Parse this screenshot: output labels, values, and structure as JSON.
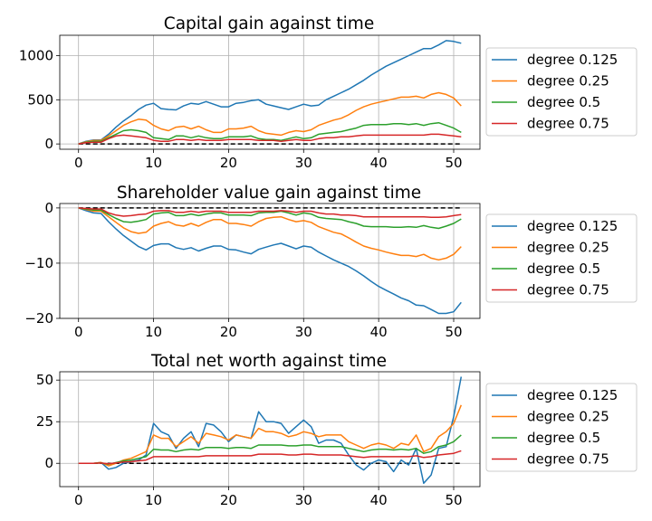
{
  "chart_data": [
    {
      "type": "line",
      "title": "Capital gain against time",
      "xlabel": "",
      "ylabel": "",
      "xlim": [
        -2.5,
        53.5
      ],
      "ylim": [
        -60,
        1230
      ],
      "xticks": [
        0,
        10,
        20,
        30,
        40,
        50
      ],
      "yticks": [
        0,
        500,
        1000
      ],
      "grid": true,
      "legend_position": "outside-right",
      "baseline": 0,
      "x": [
        0,
        1,
        2,
        3,
        4,
        5,
        6,
        7,
        8,
        9,
        10,
        11,
        12,
        13,
        14,
        15,
        16,
        17,
        18,
        19,
        20,
        21,
        22,
        23,
        24,
        25,
        26,
        27,
        28,
        29,
        30,
        31,
        32,
        33,
        34,
        35,
        36,
        37,
        38,
        39,
        40,
        41,
        42,
        43,
        44,
        45,
        46,
        47,
        48,
        49,
        50,
        51
      ],
      "series": [
        {
          "name": "degree 0.125",
          "color": "#1f77b4",
          "values": [
            0,
            30,
            45,
            45,
            110,
            190,
            260,
            320,
            390,
            440,
            460,
            400,
            390,
            385,
            430,
            460,
            450,
            480,
            450,
            420,
            420,
            460,
            470,
            490,
            500,
            450,
            430,
            410,
            390,
            420,
            450,
            430,
            440,
            500,
            540,
            580,
            620,
            670,
            720,
            780,
            830,
            880,
            920,
            960,
            1000,
            1040,
            1080,
            1080,
            1120,
            1170,
            1160,
            1140
          ]
        },
        {
          "name": "degree 0.25",
          "color": "#ff7f0e",
          "values": [
            0,
            25,
            40,
            40,
            90,
            150,
            210,
            250,
            280,
            270,
            210,
            170,
            150,
            190,
            200,
            170,
            200,
            160,
            130,
            130,
            170,
            170,
            180,
            200,
            150,
            120,
            110,
            100,
            130,
            150,
            140,
            160,
            210,
            240,
            270,
            290,
            330,
            380,
            420,
            450,
            470,
            490,
            510,
            530,
            530,
            540,
            520,
            560,
            580,
            560,
            520,
            430
          ]
        },
        {
          "name": "degree 0.5",
          "color": "#2ca02c",
          "values": [
            0,
            20,
            30,
            30,
            70,
            110,
            150,
            160,
            150,
            130,
            70,
            60,
            50,
            90,
            90,
            70,
            90,
            70,
            60,
            60,
            80,
            80,
            80,
            90,
            60,
            50,
            50,
            40,
            60,
            80,
            60,
            70,
            110,
            120,
            130,
            140,
            160,
            180,
            210,
            220,
            220,
            220,
            230,
            230,
            220,
            230,
            210,
            230,
            240,
            210,
            180,
            130
          ]
        },
        {
          "name": "degree 0.75",
          "color": "#d62728",
          "values": [
            0,
            15,
            20,
            20,
            60,
            90,
            100,
            90,
            80,
            70,
            40,
            30,
            30,
            50,
            50,
            40,
            50,
            40,
            40,
            40,
            50,
            50,
            50,
            50,
            40,
            40,
            40,
            30,
            40,
            50,
            40,
            40,
            60,
            70,
            70,
            80,
            80,
            90,
            100,
            100,
            100,
            100,
            100,
            100,
            100,
            100,
            100,
            110,
            110,
            100,
            90,
            80
          ]
        }
      ]
    },
    {
      "type": "line",
      "title": "Shareholder value gain against time",
      "xlabel": "",
      "ylabel": "",
      "xlim": [
        -2.5,
        53.5
      ],
      "ylim": [
        -20.0,
        0.8
      ],
      "xticks": [
        0,
        10,
        20,
        30,
        40,
        50
      ],
      "yticks": [
        -20,
        -10,
        0
      ],
      "grid": true,
      "legend_position": "outside-right",
      "baseline": 0,
      "x": [
        0,
        1,
        2,
        3,
        4,
        5,
        6,
        7,
        8,
        9,
        10,
        11,
        12,
        13,
        14,
        15,
        16,
        17,
        18,
        19,
        20,
        21,
        22,
        23,
        24,
        25,
        26,
        27,
        28,
        29,
        30,
        31,
        32,
        33,
        34,
        35,
        36,
        37,
        38,
        39,
        40,
        41,
        42,
        43,
        44,
        45,
        46,
        47,
        48,
        49,
        50,
        51
      ],
      "series": [
        {
          "name": "degree 0.125",
          "color": "#1f77b4",
          "values": [
            0,
            -0.5,
            -0.9,
            -1.0,
            -2.5,
            -3.8,
            -5.0,
            -6.0,
            -7.0,
            -7.6,
            -6.8,
            -6.5,
            -6.5,
            -7.2,
            -7.5,
            -7.2,
            -7.8,
            -7.3,
            -6.9,
            -6.9,
            -7.5,
            -7.6,
            -8.0,
            -8.3,
            -7.5,
            -7.1,
            -6.7,
            -6.4,
            -6.9,
            -7.4,
            -6.9,
            -7.1,
            -8.0,
            -8.7,
            -9.4,
            -10.0,
            -10.6,
            -11.4,
            -12.3,
            -13.3,
            -14.2,
            -14.9,
            -15.6,
            -16.3,
            -16.8,
            -17.6,
            -17.7,
            -18.4,
            -19.1,
            -19.1,
            -18.8,
            -17.1
          ]
        },
        {
          "name": "degree 0.25",
          "color": "#ff7f0e",
          "values": [
            0,
            -0.3,
            -0.6,
            -0.6,
            -1.6,
            -2.6,
            -3.6,
            -4.3,
            -4.6,
            -4.4,
            -3.3,
            -2.8,
            -2.5,
            -3.1,
            -3.3,
            -2.8,
            -3.3,
            -2.6,
            -2.1,
            -2.1,
            -2.8,
            -2.8,
            -3.0,
            -3.3,
            -2.5,
            -1.9,
            -1.7,
            -1.6,
            -2.1,
            -2.5,
            -2.3,
            -2.6,
            -3.4,
            -3.9,
            -4.4,
            -4.7,
            -5.4,
            -6.2,
            -6.9,
            -7.3,
            -7.6,
            -8.0,
            -8.3,
            -8.6,
            -8.6,
            -8.8,
            -8.4,
            -9.1,
            -9.4,
            -9.1,
            -8.4,
            -7.0
          ]
        },
        {
          "name": "degree 0.5",
          "color": "#2ca02c",
          "values": [
            0,
            -0.2,
            -0.4,
            -0.4,
            -1.2,
            -1.9,
            -2.5,
            -2.6,
            -2.4,
            -2.1,
            -1.1,
            -0.9,
            -0.8,
            -1.4,
            -1.4,
            -1.1,
            -1.4,
            -1.1,
            -0.9,
            -0.9,
            -1.3,
            -1.3,
            -1.3,
            -1.4,
            -0.9,
            -0.8,
            -0.8,
            -0.6,
            -0.9,
            -1.3,
            -0.9,
            -1.1,
            -1.7,
            -1.9,
            -2.0,
            -2.1,
            -2.5,
            -2.8,
            -3.3,
            -3.4,
            -3.4,
            -3.4,
            -3.5,
            -3.5,
            -3.4,
            -3.5,
            -3.2,
            -3.5,
            -3.7,
            -3.3,
            -2.8,
            -2.0
          ]
        },
        {
          "name": "degree 0.75",
          "color": "#d62728",
          "values": [
            0,
            -0.1,
            -0.2,
            -0.2,
            -0.9,
            -1.3,
            -1.5,
            -1.4,
            -1.2,
            -1.1,
            -0.6,
            -0.5,
            -0.5,
            -0.8,
            -0.8,
            -0.6,
            -0.8,
            -0.6,
            -0.6,
            -0.6,
            -0.8,
            -0.8,
            -0.8,
            -0.8,
            -0.6,
            -0.6,
            -0.6,
            -0.5,
            -0.6,
            -0.8,
            -0.6,
            -0.6,
            -0.9,
            -1.1,
            -1.1,
            -1.3,
            -1.3,
            -1.4,
            -1.6,
            -1.6,
            -1.6,
            -1.6,
            -1.6,
            -1.6,
            -1.6,
            -1.6,
            -1.6,
            -1.7,
            -1.7,
            -1.6,
            -1.4,
            -1.2
          ]
        }
      ]
    },
    {
      "type": "line",
      "title": "Total net worth against time",
      "xlabel": "",
      "ylabel": "",
      "xlim": [
        -2.5,
        53.5
      ],
      "ylim": [
        -14,
        55
      ],
      "xticks": [
        0,
        10,
        20,
        30,
        40,
        50
      ],
      "yticks": [
        0,
        25,
        50
      ],
      "grid": true,
      "legend_position": "outside-right",
      "baseline": 0,
      "x": [
        0,
        1,
        2,
        3,
        4,
        5,
        6,
        7,
        8,
        9,
        10,
        11,
        12,
        13,
        14,
        15,
        16,
        17,
        18,
        19,
        20,
        21,
        22,
        23,
        24,
        25,
        26,
        27,
        28,
        29,
        30,
        31,
        32,
        33,
        34,
        35,
        36,
        37,
        38,
        39,
        40,
        41,
        42,
        43,
        44,
        45,
        46,
        47,
        48,
        49,
        50,
        51
      ],
      "series": [
        {
          "name": "degree 0.125",
          "color": "#1f77b4",
          "values": [
            0,
            0,
            0,
            0.5,
            -3.5,
            -2.5,
            0,
            1,
            2,
            5,
            24,
            19,
            17,
            9,
            15,
            19,
            10,
            24,
            23,
            19,
            13,
            17,
            16,
            15,
            31,
            25,
            25,
            24,
            18,
            22,
            26,
            22,
            12,
            14,
            14,
            12,
            5,
            -1,
            -4,
            0,
            2,
            1,
            -5,
            2,
            -1,
            9,
            -12,
            -7,
            9,
            10,
            28,
            52
          ]
        },
        {
          "name": "degree 0.25",
          "color": "#ff7f0e",
          "values": [
            0,
            0,
            0,
            0.5,
            -1.5,
            0,
            2,
            3,
            5,
            7,
            17,
            15,
            15,
            10,
            13,
            16,
            12,
            18,
            17,
            16,
            14,
            17,
            16,
            15,
            21,
            19,
            19,
            18,
            16,
            17,
            19,
            18,
            16,
            17,
            17,
            17,
            13,
            11,
            9,
            11,
            12,
            11,
            9,
            12,
            11,
            17,
            7,
            9,
            16,
            19,
            24,
            35
          ]
        },
        {
          "name": "degree 0.5",
          "color": "#2ca02c",
          "values": [
            0,
            0,
            0,
            0.3,
            -0.5,
            0.5,
            1.5,
            2,
            3,
            4,
            8.5,
            8,
            8,
            7,
            8,
            8.5,
            8,
            9.5,
            9.5,
            9.5,
            9,
            9.5,
            9.5,
            9,
            11,
            11,
            11,
            11,
            10.5,
            10.5,
            11,
            11,
            10,
            10,
            10,
            10,
            9,
            8,
            7,
            8,
            8.5,
            8.5,
            8,
            8.5,
            8,
            9,
            6,
            7,
            10,
            11,
            13,
            17
          ]
        },
        {
          "name": "degree 0.75",
          "color": "#d62728",
          "values": [
            0,
            0,
            0,
            0.2,
            -0.3,
            0.3,
            0.8,
            1,
            1.5,
            2,
            4,
            4,
            4,
            4,
            4,
            4,
            4,
            4.5,
            4.5,
            4.5,
            4.5,
            4.5,
            4.5,
            4.5,
            5.5,
            5.5,
            5.5,
            5.5,
            5,
            5,
            5.5,
            5.5,
            5,
            5,
            5,
            5,
            4.5,
            4,
            3.5,
            4,
            4,
            4,
            4,
            4,
            4,
            4.5,
            3.5,
            4,
            5,
            5.5,
            6,
            7.5
          ]
        }
      ]
    }
  ]
}
